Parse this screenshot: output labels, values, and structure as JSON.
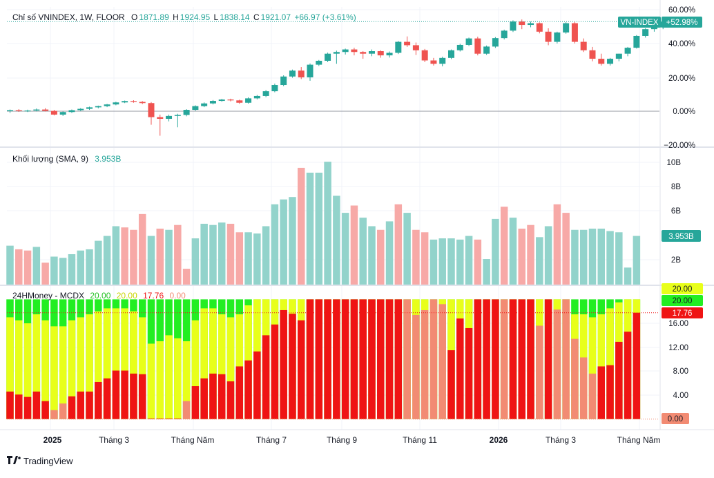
{
  "colors": {
    "up": "#26a69a",
    "down": "#ef5350",
    "vol_up": "#92d3cb",
    "vol_down": "#f7a9a7",
    "mcdx_red": "#ef1414",
    "mcdx_pink": "#f28b73",
    "mcdx_yellow": "#e8ff1a",
    "mcdx_green": "#22ee22",
    "grid": "#f0f3fa",
    "axis_text": "#131722"
  },
  "price_panel": {
    "legend": {
      "name": "Chỉ số VNINDEX, 1W, FLOOR",
      "o_label": "O",
      "o_value": "1871.89",
      "h_label": "H",
      "h_value": "1924.95",
      "l_label": "L",
      "l_value": "1838.14",
      "c_label": "C",
      "c_value": "1921.07",
      "change": "+66.97 (+3.61%)"
    },
    "axis_ticks": [
      "60.00%",
      "40.00%",
      "20.00%",
      "0.00%",
      "−20.00%"
    ],
    "badge_name": "VN-INDEX",
    "badge_value": "+52.98%"
  },
  "volume_panel": {
    "legend": {
      "name": "Khối lượng (SMA, 9)",
      "value": "3.953B"
    },
    "axis_ticks": [
      "10B",
      "8B",
      "6B",
      "2B"
    ],
    "badge_value": "3.953B"
  },
  "mcdx_panel": {
    "legend": {
      "name": "24HMoney - MCDX",
      "v1": "20.00",
      "v2": "20.00",
      "v3": "17.76",
      "v4": "0.00"
    },
    "axis_ticks": [
      "16.00",
      "12.00",
      "8.00",
      "4.00"
    ],
    "badges": {
      "top": "20.00",
      "green": "20.00",
      "red": "17.76",
      "zero": "0.00"
    }
  },
  "time_axis": [
    "2025",
    "Tháng 3",
    "Tháng Năm",
    "Tháng 7",
    "Tháng 9",
    "Tháng 11",
    "2026",
    "Tháng 3",
    "Tháng Năm"
  ],
  "brand": "TradingView",
  "chart_data": [
    {
      "type": "candlestick",
      "title": "Chỉ số VNINDEX, 1W, FLOOR",
      "y_unit": "% change",
      "ylim": [
        -20,
        60
      ],
      "candles": [
        {
          "o": 0.0,
          "h": 1.0,
          "l": -1.0,
          "c": 0.6
        },
        {
          "o": 0.6,
          "h": 1.2,
          "l": -0.4,
          "c": 0.2
        },
        {
          "o": 0.2,
          "h": 0.9,
          "l": -0.5,
          "c": 0.4
        },
        {
          "o": 0.4,
          "h": 1.6,
          "l": -0.1,
          "c": 1.0
        },
        {
          "o": 1.0,
          "h": 1.8,
          "l": -0.2,
          "c": 0.2
        },
        {
          "o": 0.2,
          "h": 0.8,
          "l": -2.5,
          "c": -2.0
        },
        {
          "o": -2.0,
          "h": -0.2,
          "l": -2.8,
          "c": -0.5
        },
        {
          "o": -0.5,
          "h": 1.0,
          "l": -1.0,
          "c": 0.6
        },
        {
          "o": 0.6,
          "h": 1.8,
          "l": 0.1,
          "c": 1.4
        },
        {
          "o": 1.4,
          "h": 2.7,
          "l": 0.8,
          "c": 2.3
        },
        {
          "o": 2.3,
          "h": 3.3,
          "l": 1.7,
          "c": 3.0
        },
        {
          "o": 3.0,
          "h": 4.3,
          "l": 2.4,
          "c": 4.0
        },
        {
          "o": 4.0,
          "h": 5.6,
          "l": 3.5,
          "c": 5.2
        },
        {
          "o": 5.2,
          "h": 6.3,
          "l": 4.8,
          "c": 6.0
        },
        {
          "o": 6.0,
          "h": 6.5,
          "l": 5.0,
          "c": 5.5
        },
        {
          "o": 5.5,
          "h": 6.0,
          "l": 4.2,
          "c": 4.8
        },
        {
          "o": 4.8,
          "h": 5.4,
          "l": -8.0,
          "c": -3.5
        },
        {
          "o": -3.5,
          "h": -2.0,
          "l": -14.5,
          "c": -4.5
        },
        {
          "o": -4.5,
          "h": -2.0,
          "l": -6.0,
          "c": -2.8
        },
        {
          "o": -2.8,
          "h": -1.5,
          "l": -9.5,
          "c": -2.2
        },
        {
          "o": -2.2,
          "h": 1.2,
          "l": -3.0,
          "c": 0.8
        },
        {
          "o": 0.8,
          "h": 3.5,
          "l": 0.2,
          "c": 3.0
        },
        {
          "o": 3.0,
          "h": 5.2,
          "l": 2.4,
          "c": 4.6
        },
        {
          "o": 4.6,
          "h": 6.6,
          "l": 4.0,
          "c": 6.1
        },
        {
          "o": 6.1,
          "h": 7.3,
          "l": 5.6,
          "c": 6.9
        },
        {
          "o": 6.9,
          "h": 7.4,
          "l": 5.8,
          "c": 6.4
        },
        {
          "o": 6.4,
          "h": 6.8,
          "l": 4.4,
          "c": 5.0
        },
        {
          "o": 5.0,
          "h": 8.2,
          "l": 4.5,
          "c": 7.6
        },
        {
          "o": 7.6,
          "h": 9.6,
          "l": 7.0,
          "c": 9.0
        },
        {
          "o": 9.0,
          "h": 12.5,
          "l": 8.3,
          "c": 11.8
        },
        {
          "o": 11.8,
          "h": 16.3,
          "l": 11.2,
          "c": 15.5
        },
        {
          "o": 15.5,
          "h": 21.2,
          "l": 14.8,
          "c": 20.5
        },
        {
          "o": 20.5,
          "h": 24.6,
          "l": 19.8,
          "c": 24.0
        },
        {
          "o": 24.0,
          "h": 26.1,
          "l": 19.0,
          "c": 20.0
        },
        {
          "o": 20.0,
          "h": 28.2,
          "l": 18.0,
          "c": 27.5
        },
        {
          "o": 27.5,
          "h": 30.3,
          "l": 26.7,
          "c": 29.8
        },
        {
          "o": 29.8,
          "h": 34.6,
          "l": 29.0,
          "c": 34.0
        },
        {
          "o": 34.0,
          "h": 35.8,
          "l": 28.0,
          "c": 35.0
        },
        {
          "o": 35.0,
          "h": 37.0,
          "l": 33.5,
          "c": 36.5
        },
        {
          "o": 36.5,
          "h": 37.5,
          "l": 33.0,
          "c": 35.0
        },
        {
          "o": 35.0,
          "h": 35.5,
          "l": 31.0,
          "c": 34.0
        },
        {
          "o": 34.0,
          "h": 36.5,
          "l": 32.5,
          "c": 35.5
        },
        {
          "o": 35.5,
          "h": 36.0,
          "l": 31.6,
          "c": 33.0
        },
        {
          "o": 33.0,
          "h": 35.3,
          "l": 31.7,
          "c": 34.5
        },
        {
          "o": 34.5,
          "h": 41.5,
          "l": 33.8,
          "c": 41.0
        },
        {
          "o": 41.0,
          "h": 44.2,
          "l": 38.0,
          "c": 39.0
        },
        {
          "o": 39.0,
          "h": 40.6,
          "l": 33.2,
          "c": 36.0
        },
        {
          "o": 36.0,
          "h": 36.8,
          "l": 29.0,
          "c": 30.0
        },
        {
          "o": 30.0,
          "h": 31.5,
          "l": 27.0,
          "c": 28.0
        },
        {
          "o": 28.0,
          "h": 32.2,
          "l": 26.5,
          "c": 31.5
        },
        {
          "o": 31.5,
          "h": 36.5,
          "l": 30.8,
          "c": 36.0
        },
        {
          "o": 36.0,
          "h": 39.8,
          "l": 35.3,
          "c": 39.2
        },
        {
          "o": 39.2,
          "h": 43.5,
          "l": 38.5,
          "c": 43.0
        },
        {
          "o": 43.0,
          "h": 44.0,
          "l": 33.0,
          "c": 34.0
        },
        {
          "o": 34.0,
          "h": 38.8,
          "l": 33.3,
          "c": 38.2
        },
        {
          "o": 38.2,
          "h": 43.8,
          "l": 37.4,
          "c": 43.2
        },
        {
          "o": 43.2,
          "h": 48.2,
          "l": 42.4,
          "c": 47.6
        },
        {
          "o": 47.6,
          "h": 53.7,
          "l": 46.8,
          "c": 53.0
        },
        {
          "o": 53.0,
          "h": 54.2,
          "l": 48.5,
          "c": 51.0
        },
        {
          "o": 51.0,
          "h": 53.0,
          "l": 49.6,
          "c": 52.0
        },
        {
          "o": 52.0,
          "h": 52.5,
          "l": 46.0,
          "c": 47.0
        },
        {
          "o": 47.0,
          "h": 49.0,
          "l": 39.0,
          "c": 41.0
        },
        {
          "o": 41.0,
          "h": 47.0,
          "l": 40.0,
          "c": 46.5
        },
        {
          "o": 46.5,
          "h": 52.6,
          "l": 45.8,
          "c": 52.0
        },
        {
          "o": 52.0,
          "h": 53.0,
          "l": 40.0,
          "c": 41.0
        },
        {
          "o": 41.0,
          "h": 43.0,
          "l": 35.0,
          "c": 36.0
        },
        {
          "o": 36.0,
          "h": 38.0,
          "l": 29.5,
          "c": 31.0
        },
        {
          "o": 31.0,
          "h": 34.0,
          "l": 27.0,
          "c": 28.0
        },
        {
          "o": 28.0,
          "h": 31.5,
          "l": 27.0,
          "c": 31.0
        },
        {
          "o": 31.0,
          "h": 34.0,
          "l": 29.5,
          "c": 34.0
        },
        {
          "o": 34.0,
          "h": 38.0,
          "l": 32.5,
          "c": 37.5
        },
        {
          "o": 37.5,
          "h": 45.0,
          "l": 37.0,
          "c": 44.5
        },
        {
          "o": 44.5,
          "h": 49.0,
          "l": 43.5,
          "c": 48.5
        },
        {
          "o": 48.5,
          "h": 50.0,
          "l": 47.0,
          "c": 49.5
        },
        {
          "o": 49.5,
          "h": 54.0,
          "l": 48.5,
          "c": 52.98
        }
      ]
    },
    {
      "type": "bar",
      "title": "Khối lượng (SMA, 9)",
      "y_unit": "B shares",
      "ylim": [
        0,
        10.5
      ],
      "volumes": [
        3.2,
        2.9,
        2.8,
        3.1,
        1.8,
        2.3,
        2.2,
        2.5,
        2.8,
        2.9,
        3.6,
        4.0,
        4.8,
        4.7,
        4.5,
        5.8,
        4.0,
        4.6,
        4.5,
        4.9,
        1.3,
        3.8,
        5.0,
        4.9,
        5.1,
        5.0,
        4.3,
        4.3,
        4.2,
        4.8,
        6.6,
        7.0,
        7.2,
        9.6,
        9.2,
        9.2,
        10.1,
        7.3,
        5.9,
        6.5,
        5.5,
        4.8,
        4.5,
        5.2,
        6.6,
        5.9,
        4.5,
        4.3,
        3.7,
        3.8,
        3.8,
        3.7,
        4.0,
        3.7,
        2.1,
        5.4,
        6.4,
        5.5,
        4.6,
        4.9,
        3.9,
        4.8,
        6.6,
        5.9,
        4.5,
        4.5,
        4.6,
        4.6,
        4.4,
        4.3,
        1.4,
        4.0
      ],
      "volume_up": [
        1,
        0,
        0,
        1,
        0,
        1,
        1,
        1,
        1,
        1,
        1,
        1,
        1,
        0,
        0,
        0,
        1,
        0,
        1,
        0,
        0,
        1,
        1,
        1,
        1,
        0,
        0,
        1,
        1,
        1,
        1,
        1,
        1,
        0,
        1,
        1,
        1,
        1,
        1,
        0,
        1,
        1,
        0,
        1,
        0,
        1,
        0,
        0,
        1,
        1,
        1,
        1,
        1,
        0,
        1,
        1,
        0,
        1,
        0,
        0,
        1,
        1,
        0,
        0,
        1,
        1,
        1,
        1,
        1,
        1,
        1,
        1
      ],
      "sma": 3.953
    },
    {
      "type": "stacked_bar",
      "title": "24HMoney - MCDX",
      "ylim": [
        0,
        20
      ],
      "red": [
        4.6,
        4.1,
        3.7,
        4.6,
        3.0,
        1.5,
        2.6,
        3.8,
        4.6,
        4.6,
        6.2,
        6.8,
        8.1,
        8.1,
        7.6,
        7.5,
        0.1,
        0.1,
        0.1,
        0.1,
        3.0,
        5.5,
        6.8,
        7.6,
        7.5,
        6.3,
        8.8,
        9.8,
        11.3,
        14.0,
        15.8,
        18.2,
        17.6,
        16.5,
        20,
        20,
        20,
        20,
        20,
        20,
        20,
        20,
        20,
        20,
        20,
        20,
        20,
        20,
        20,
        20,
        20,
        20,
        20,
        20,
        20,
        20,
        20,
        20,
        20,
        20,
        20,
        20,
        20,
        20,
        20,
        20,
        20,
        20,
        20,
        20,
        20,
        17.76
      ],
      "red_pink": [
        0,
        0,
        0,
        0,
        0,
        1,
        1,
        0,
        0,
        0,
        0,
        0,
        0,
        0,
        0,
        0,
        0,
        0,
        0,
        0,
        1,
        0,
        0,
        0,
        0,
        0,
        0,
        0,
        0,
        0,
        0,
        0,
        0,
        0,
        0,
        0,
        0,
        0,
        0,
        0,
        0,
        0,
        0,
        0,
        0,
        1,
        1,
        1,
        1,
        1,
        0,
        0,
        0,
        0,
        0,
        0,
        1,
        0,
        0,
        0,
        1,
        0,
        1,
        1,
        1,
        1,
        1,
        0,
        0,
        0,
        0,
        0
      ],
      "red_values_full": [
        4.6,
        4.1,
        3.7,
        4.6,
        3.0,
        1.5,
        2.6,
        3.8,
        4.6,
        4.6,
        6.2,
        6.8,
        8.1,
        8.1,
        7.6,
        7.5,
        0.1,
        0.1,
        0.1,
        0.1,
        3.0,
        5.5,
        6.8,
        7.6,
        7.5,
        6.3,
        8.8,
        9.8,
        11.3,
        14.0,
        15.8,
        18.2,
        17.6,
        16.5,
        20,
        20,
        20,
        20,
        20,
        20,
        20,
        20,
        20,
        20,
        20,
        20,
        17.4,
        18.2,
        20,
        19.2,
        11.5,
        16.8,
        15.2,
        20,
        20,
        20,
        20,
        20,
        20,
        20,
        15.6,
        20,
        18.3,
        20,
        13.4,
        10.3,
        7.6,
        8.8,
        9.0,
        12.9,
        14.6,
        17.76
      ],
      "yellow_top": [
        17.0,
        16.5,
        16.0,
        17.5,
        16.5,
        15.5,
        15.5,
        16.5,
        17.0,
        17.5,
        18.0,
        18.5,
        18.5,
        18.5,
        18.0,
        17.0,
        12.6,
        13.0,
        14.0,
        13.5,
        13.0,
        16.5,
        18.5,
        18.5,
        17.5,
        17.0,
        17.5,
        19.0,
        20,
        20,
        20,
        20,
        20,
        20,
        20,
        20,
        20,
        20,
        20,
        20,
        20,
        20,
        20,
        20,
        20,
        20,
        20,
        20,
        20,
        20,
        20,
        20,
        20,
        20,
        20,
        20,
        20,
        20,
        20,
        20,
        20,
        20,
        20,
        18.0,
        17.5,
        17.5,
        17.0,
        17.5,
        18.5,
        19.5,
        20,
        20
      ],
      "green_top": 20,
      "legend_values": [
        "20.00",
        "20.00",
        "17.76",
        "0.00"
      ]
    }
  ]
}
